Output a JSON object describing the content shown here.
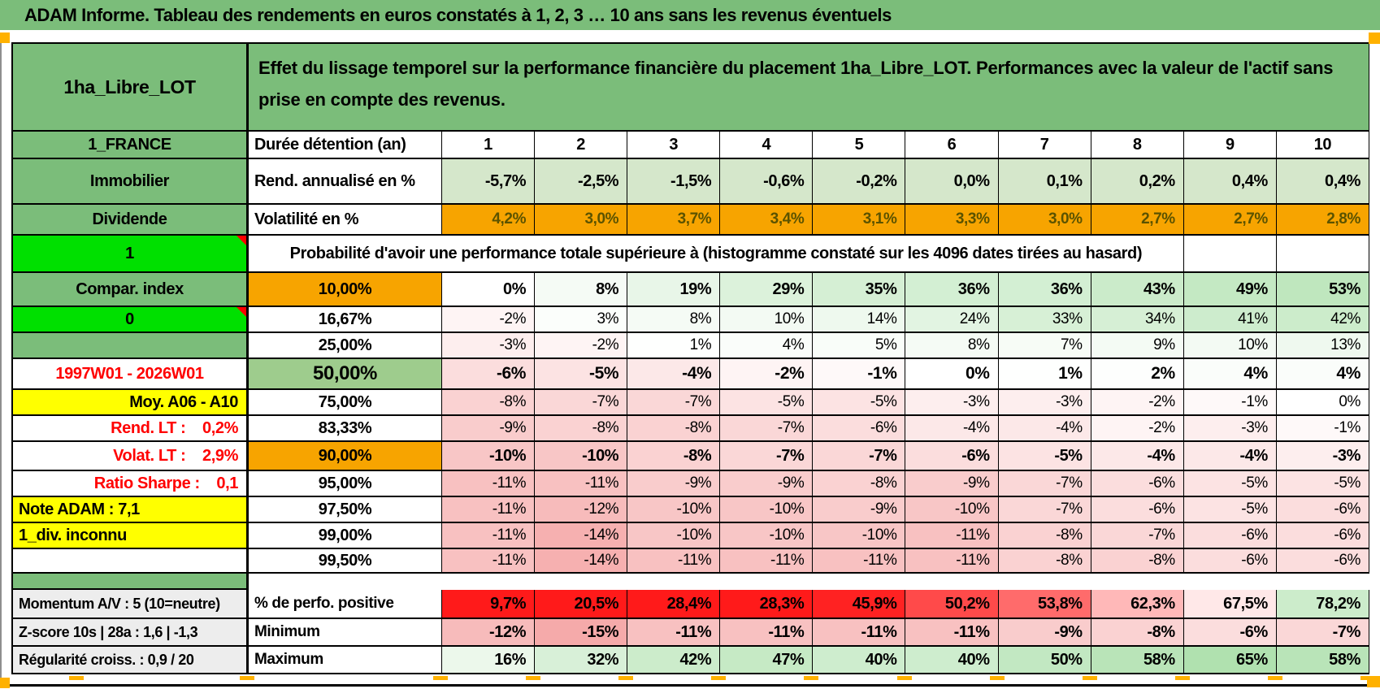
{
  "title": "ADAM Informe. Tableau des rendements en euros constatés à 1, 2, 3 … 10 ans sans les revenus éventuels",
  "header": {
    "description": "Effet du lissage temporel sur la performance financière du placement 1ha_Libre_LOT. Performances avec la valeur de l'actif sans prise en compte des revenus.",
    "duration_label": "Durée détention (an)",
    "rend_label": "Rend. annualisé en %",
    "volat_label": "Volatilité en %",
    "proba_caption": "Probabilité d'avoir une performance totale supérieure à (histogramme constaté sur les 4096 dates tirées au hasard)"
  },
  "left_panel": [
    {
      "id": "asset-name",
      "text": "1ha_Libre_LOT",
      "style": "green",
      "size": "lg",
      "row": 1
    },
    {
      "id": "country",
      "text": "1_FRANCE",
      "style": "green",
      "row": 2
    },
    {
      "id": "sector",
      "text": "Immobilier",
      "style": "green",
      "row": 3
    },
    {
      "id": "dividende",
      "text": "Dividende",
      "style": "green",
      "row": 4
    },
    {
      "id": "flag-one",
      "text": "1",
      "style": "bright",
      "marker": true,
      "row": 5
    },
    {
      "id": "compar-index",
      "text": "Compar. index",
      "style": "green",
      "row": 6
    },
    {
      "id": "flag-zero",
      "text": "0",
      "style": "bright",
      "marker": true,
      "row": 7
    },
    {
      "id": "empty-green",
      "text": "",
      "style": "green",
      "row": 8
    },
    {
      "id": "period",
      "text": "1997W01 - 2026W01",
      "style": "red-center",
      "row": 9
    },
    {
      "id": "moyenne",
      "text": "Moy. A06 - A10",
      "style": "yellow-right",
      "row": 10
    },
    {
      "id": "rend-lt",
      "text": "Rend. LT :    0,2%",
      "style": "red-right",
      "row": 11
    },
    {
      "id": "volat-lt",
      "text": "Volat. LT :    2,9%",
      "style": "red-right",
      "row": 12
    },
    {
      "id": "ratio-sharpe",
      "text": "Ratio Sharpe :    0,1",
      "style": "red-right",
      "row": 13
    },
    {
      "id": "note-adam",
      "text": "Note ADAM : 7,1",
      "style": "yellow-left",
      "row": 14
    },
    {
      "id": "div-inconnu",
      "text": "1_div. inconnu",
      "style": "yellow-left",
      "row": 15
    },
    {
      "id": "empty-white",
      "text": "",
      "style": "plain",
      "row": 16
    },
    {
      "id": "separator-band",
      "text": "",
      "style": "band",
      "row": 17
    },
    {
      "id": "momentum",
      "text": "Momentum A/V : 5 (10=neutre)",
      "style": "gray-left",
      "row": 18
    },
    {
      "id": "zscore",
      "text": "Z-score 10s | 28a : 1,6 | -1,3",
      "style": "gray-left",
      "row": 19
    },
    {
      "id": "regularite",
      "text": "Régularité croiss. : 0,9 / 20",
      "style": "gray-left",
      "row": 20
    }
  ],
  "table": {
    "durations": [
      "1",
      "2",
      "3",
      "4",
      "5",
      "6",
      "7",
      "8",
      "9",
      "10"
    ],
    "rend_annualise": [
      "-5,7%",
      "-2,5%",
      "-1,5%",
      "-0,6%",
      "-0,2%",
      "0,0%",
      "0,1%",
      "0,2%",
      "0,4%",
      "0,4%"
    ],
    "volatilite": [
      "4,2%",
      "3,0%",
      "3,7%",
      "3,4%",
      "3,1%",
      "3,3%",
      "3,0%",
      "2,7%",
      "2,7%",
      "2,8%"
    ],
    "prob_rows": [
      {
        "label": "10,00%",
        "label_style": "orange",
        "emphasis": true,
        "values": [
          "0%",
          "8%",
          "19%",
          "29%",
          "35%",
          "36%",
          "36%",
          "43%",
          "49%",
          "53%"
        ]
      },
      {
        "label": "16,67%",
        "label_style": "plain",
        "emphasis": false,
        "values": [
          "-2%",
          "3%",
          "8%",
          "10%",
          "14%",
          "24%",
          "33%",
          "34%",
          "41%",
          "42%"
        ]
      },
      {
        "label": "25,00%",
        "label_style": "plain",
        "emphasis": false,
        "values": [
          "-3%",
          "-2%",
          "1%",
          "4%",
          "5%",
          "8%",
          "7%",
          "9%",
          "10%",
          "13%"
        ]
      },
      {
        "label": "50,00%",
        "label_style": "green",
        "emphasis": true,
        "big": true,
        "values": [
          "-6%",
          "-5%",
          "-4%",
          "-2%",
          "-1%",
          "0%",
          "1%",
          "2%",
          "4%",
          "4%"
        ]
      },
      {
        "label": "75,00%",
        "label_style": "plain",
        "emphasis": false,
        "values": [
          "-8%",
          "-7%",
          "-7%",
          "-5%",
          "-5%",
          "-3%",
          "-3%",
          "-2%",
          "-1%",
          "0%"
        ]
      },
      {
        "label": "83,33%",
        "label_style": "plain",
        "emphasis": false,
        "values": [
          "-9%",
          "-8%",
          "-8%",
          "-7%",
          "-6%",
          "-4%",
          "-4%",
          "-2%",
          "-3%",
          "-1%"
        ]
      },
      {
        "label": "90,00%",
        "label_style": "orange",
        "emphasis": true,
        "values": [
          "-10%",
          "-10%",
          "-8%",
          "-7%",
          "-7%",
          "-6%",
          "-5%",
          "-4%",
          "-4%",
          "-3%"
        ]
      },
      {
        "label": "95,00%",
        "label_style": "plain",
        "emphasis": false,
        "values": [
          "-11%",
          "-11%",
          "-9%",
          "-9%",
          "-8%",
          "-9%",
          "-7%",
          "-6%",
          "-5%",
          "-5%"
        ]
      },
      {
        "label": "97,50%",
        "label_style": "plain",
        "emphasis": false,
        "values": [
          "-11%",
          "-12%",
          "-10%",
          "-10%",
          "-9%",
          "-10%",
          "-7%",
          "-6%",
          "-5%",
          "-6%"
        ]
      },
      {
        "label": "99,00%",
        "label_style": "plain",
        "emphasis": false,
        "values": [
          "-11%",
          "-14%",
          "-10%",
          "-10%",
          "-10%",
          "-11%",
          "-8%",
          "-7%",
          "-6%",
          "-6%"
        ]
      },
      {
        "label": "99,50%",
        "label_style": "plain",
        "emphasis": false,
        "values": [
          "-11%",
          "-14%",
          "-11%",
          "-11%",
          "-11%",
          "-11%",
          "-8%",
          "-8%",
          "-6%",
          "-6%"
        ]
      }
    ],
    "bottom_rows": [
      {
        "label": "% de perfo. positive",
        "scale": "perfo",
        "values": [
          "9,7%",
          "20,5%",
          "28,4%",
          "28,3%",
          "45,9%",
          "50,2%",
          "53,8%",
          "62,3%",
          "67,5%",
          "78,2%"
        ]
      },
      {
        "label": "Minimum",
        "scale": "std",
        "values": [
          "-12%",
          "-15%",
          "-11%",
          "-11%",
          "-11%",
          "-11%",
          "-9%",
          "-8%",
          "-6%",
          "-7%"
        ]
      },
      {
        "label": "Maximum",
        "scale": "std",
        "values": [
          "16%",
          "32%",
          "42%",
          "47%",
          "40%",
          "40%",
          "50%",
          "58%",
          "65%",
          "58%"
        ]
      }
    ]
  },
  "icons": {
    "comment_marker": "red-corner-triangle",
    "page_break_marker": "orange-dash"
  },
  "colors": {
    "header_green": "#7BBD7A",
    "label_green": "#9ECC8D",
    "bright_green": "#00E000",
    "orange": "#F7A400",
    "marker_orange": "#FFB100",
    "yellow": "#FFFF00",
    "red_text": "#FF0000",
    "rend_row_green": "#D5E7CB",
    "scale_negative": "#F5AAAA",
    "scale_positive": "#AADFA9",
    "perfo_red": "#FF1A1A",
    "gray_label": "#EDEDED",
    "volat_text": "#5B5300"
  }
}
